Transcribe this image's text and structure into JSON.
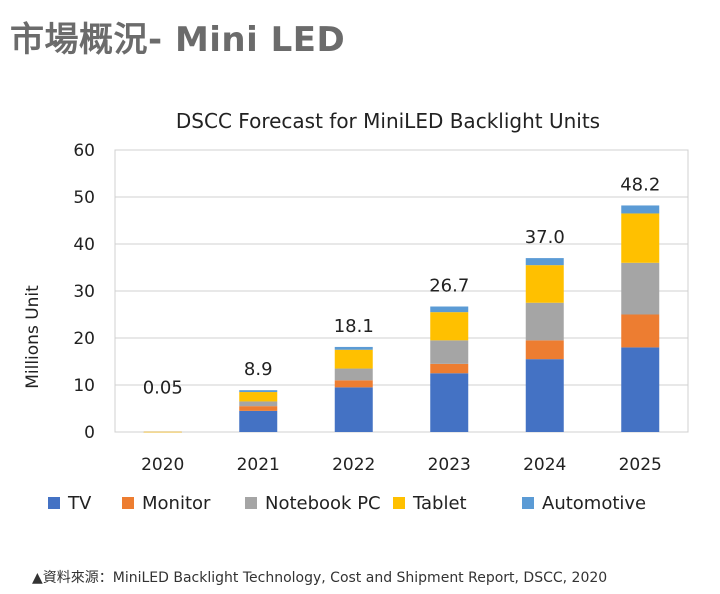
{
  "page": {
    "title": "市場概況- Mini LED",
    "source": "▲資料來源：MiniLED Backlight Technology, Cost and Shipment Report, DSCC, 2020"
  },
  "chart_data": {
    "type": "bar",
    "stacked": true,
    "title": "DSCC Forecast for MiniLED Backlight Units",
    "xlabel": "",
    "ylabel": "Millions Unit",
    "ylim": [
      0,
      60
    ],
    "yticks": [
      0,
      10,
      20,
      30,
      40,
      50,
      60
    ],
    "categories": [
      "2020",
      "2021",
      "2022",
      "2023",
      "2024",
      "2025"
    ],
    "totals": [
      0.05,
      8.9,
      18.1,
      26.7,
      37.0,
      48.2
    ],
    "total_labels": [
      "0.05",
      "8.9",
      "18.1",
      "26.7",
      "37.0",
      "48.2"
    ],
    "legend_position": "bottom",
    "grid": true,
    "series": [
      {
        "name": "TV",
        "color": "#4472C4",
        "values": [
          0.02,
          4.5,
          9.5,
          12.5,
          15.5,
          18.0
        ]
      },
      {
        "name": "Monitor",
        "color": "#ED7D31",
        "values": [
          0.01,
          1.0,
          1.5,
          2.0,
          4.0,
          7.0
        ]
      },
      {
        "name": "Notebook PC",
        "color": "#A5A5A5",
        "values": [
          0.01,
          1.0,
          2.5,
          5.0,
          8.0,
          11.0
        ]
      },
      {
        "name": "Tablet",
        "color": "#FFC000",
        "values": [
          0.01,
          2.0,
          4.0,
          6.0,
          8.0,
          10.5
        ]
      },
      {
        "name": "Automotive",
        "color": "#5B9BD5",
        "values": [
          0.0,
          0.4,
          0.6,
          1.2,
          1.5,
          1.7
        ]
      }
    ]
  }
}
